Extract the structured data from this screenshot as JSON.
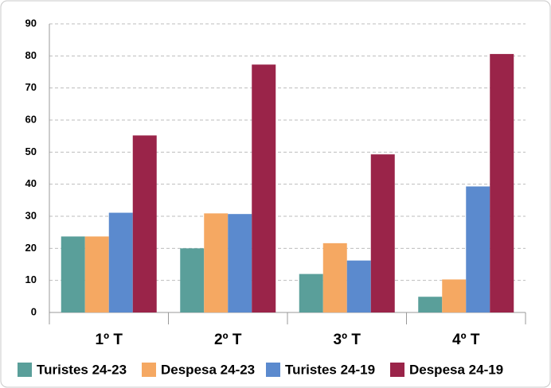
{
  "chart_data": {
    "type": "bar",
    "categories": [
      "1º T",
      "2º T",
      "3º T",
      "4º T"
    ],
    "series": [
      {
        "name": "Turistes 24-23",
        "color": "#5a9f9a",
        "values": [
          23.7,
          20.0,
          12.0,
          4.9
        ]
      },
      {
        "name": "Despesa 24-23",
        "color": "#f5a862",
        "values": [
          23.7,
          30.9,
          21.6,
          10.3
        ]
      },
      {
        "name": "Turistes 24-19",
        "color": "#5b8ace",
        "values": [
          31.1,
          30.7,
          16.2,
          39.3
        ]
      },
      {
        "name": "Despesa 24-19",
        "color": "#9a2449",
        "values": [
          55.2,
          77.3,
          49.3,
          80.6
        ]
      }
    ],
    "ylim": [
      0,
      90
    ],
    "yticks": [
      0,
      10,
      20,
      30,
      40,
      50,
      60,
      70,
      80,
      90
    ],
    "grid": true,
    "legend": "bottom"
  }
}
